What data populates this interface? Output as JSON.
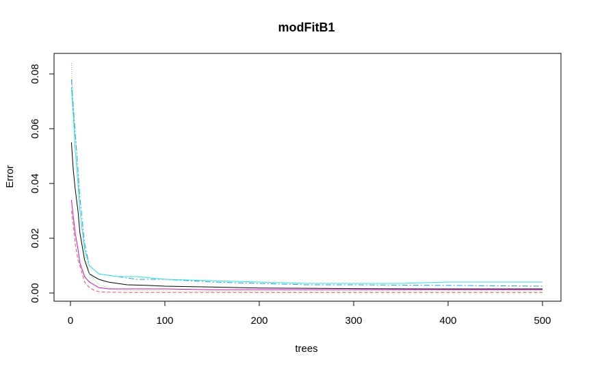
{
  "chart_data": {
    "type": "line",
    "title": "modFitB1",
    "xlabel": "trees",
    "ylabel": "Error",
    "xlim": [
      0,
      500
    ],
    "ylim": [
      0,
      0.085
    ],
    "xticks": [
      0,
      100,
      200,
      300,
      400,
      500
    ],
    "xtick_labels": [
      "0",
      "100",
      "200",
      "300",
      "400",
      "500"
    ],
    "yticks": [
      0,
      0.02,
      0.04,
      0.06,
      0.08
    ],
    "ytick_labels": [
      "0.00",
      "0.02",
      "0.04",
      "0.06",
      "0.08"
    ],
    "grid": false,
    "legend": "none",
    "series": [
      {
        "color": "#000000",
        "dash": "",
        "x": [
          1,
          3,
          5,
          8,
          10,
          15,
          20,
          30,
          40,
          60,
          80,
          100,
          150,
          200,
          300,
          400,
          500
        ],
        "y": [
          0.055,
          0.045,
          0.038,
          0.03,
          0.022,
          0.012,
          0.007,
          0.005,
          0.004,
          0.003,
          0.0028,
          0.0025,
          0.0022,
          0.0018,
          0.0016,
          0.0015,
          0.0015
        ]
      },
      {
        "color": "#df536b",
        "dash": "5,3",
        "x": [
          1,
          3,
          5,
          8,
          10,
          15,
          20,
          25,
          30,
          40,
          60,
          100,
          150,
          200,
          300,
          400,
          500
        ],
        "y": [
          0.03,
          0.025,
          0.018,
          0.012,
          0.01,
          0.004,
          0.002,
          0.001,
          0.0005,
          0.0003,
          0.0002,
          0.0002,
          0.0002,
          0.0002,
          0.0002,
          0.0002,
          0.0002
        ]
      },
      {
        "color": "#61d04f",
        "dash": "1,2",
        "x": [
          1,
          2,
          4,
          6,
          8,
          10,
          15,
          20,
          30,
          50,
          100,
          150,
          200,
          300,
          400,
          500
        ],
        "y": [
          0.084,
          0.072,
          0.064,
          0.055,
          0.045,
          0.03,
          0.015,
          0.007,
          0.003,
          0.001,
          0.0008,
          0.0006,
          0.0005,
          0.0004,
          0.0004,
          0.0004
        ]
      },
      {
        "color": "#2297e6",
        "dash": "8,3,2,3",
        "x": [
          1,
          3,
          5,
          8,
          10,
          15,
          20,
          30,
          50,
          70,
          100,
          150,
          200,
          250,
          300,
          400,
          500
        ],
        "y": [
          0.078,
          0.068,
          0.058,
          0.045,
          0.035,
          0.018,
          0.01,
          0.007,
          0.006,
          0.005,
          0.005,
          0.004,
          0.0035,
          0.003,
          0.003,
          0.0028,
          0.0025
        ]
      },
      {
        "color": "#28e2e5",
        "dash": "",
        "x": [
          1,
          3,
          5,
          8,
          10,
          15,
          20,
          30,
          50,
          70,
          100,
          150,
          200,
          250,
          300,
          350,
          400,
          450,
          500
        ],
        "y": [
          0.075,
          0.065,
          0.052,
          0.04,
          0.03,
          0.016,
          0.01,
          0.007,
          0.006,
          0.006,
          0.005,
          0.0045,
          0.004,
          0.0035,
          0.0035,
          0.0035,
          0.004,
          0.004,
          0.004
        ]
      },
      {
        "color": "#cd0bbc",
        "dash": "",
        "x": [
          1,
          3,
          5,
          8,
          10,
          15,
          20,
          30,
          40,
          60,
          100,
          150,
          200,
          300,
          400,
          500
        ],
        "y": [
          0.034,
          0.028,
          0.022,
          0.016,
          0.011,
          0.006,
          0.004,
          0.002,
          0.0015,
          0.0015,
          0.0015,
          0.0012,
          0.0012,
          0.0012,
          0.0012,
          0.0012
        ]
      }
    ]
  }
}
